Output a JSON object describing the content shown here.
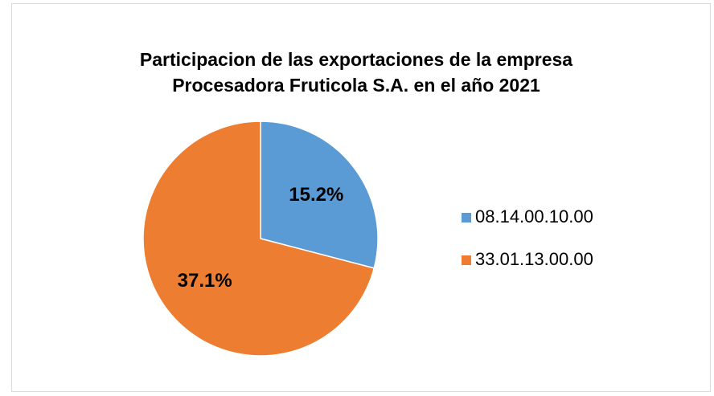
{
  "chart_data": {
    "type": "pie",
    "title": [
      "Participacion de las exportaciones de la empresa",
      "Procesadora Fruticola S.A. en el año 2021"
    ],
    "categories": [
      "08.14.00.10.00",
      "33.01.13.00.00"
    ],
    "values": [
      15.2,
      37.1
    ],
    "value_labels": [
      "15.2%",
      "37.1%"
    ],
    "colors": [
      "#5b9bd5",
      "#ed7d31"
    ],
    "legend": "right"
  }
}
